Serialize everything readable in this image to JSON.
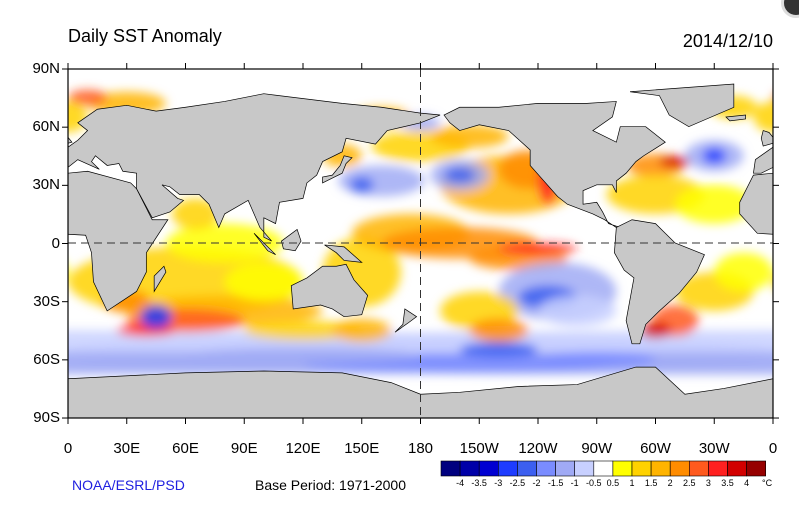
{
  "header": {
    "title": "Daily SST Anomaly",
    "date": "2014/12/10"
  },
  "map": {
    "lat_labels": [
      "90N",
      "60N",
      "30N",
      "0",
      "30S",
      "60S",
      "90S"
    ],
    "lon_labels": [
      "0",
      "30E",
      "60E",
      "90E",
      "120E",
      "150E",
      "180",
      "150W",
      "120W",
      "90W",
      "60W",
      "30W",
      "0"
    ],
    "ocean_color": "#ffffff",
    "land_color": "#c8c8c8"
  },
  "footer": {
    "org": "NOAA/ESRL/PSD",
    "base_period": "Base Period: 1971-2000"
  },
  "colorbar": {
    "colors": [
      "#00007f",
      "#0000a8",
      "#0000d2",
      "#1e3cff",
      "#3c5ff0",
      "#7a8cff",
      "#a0aaf5",
      "#c8d0ff",
      "#ffffff",
      "#ffff00",
      "#ffd200",
      "#ffb400",
      "#ff8c00",
      "#ff5a1e",
      "#ff2020",
      "#d20000",
      "#960000"
    ],
    "labels": [
      "-4",
      "-3.5",
      "-3",
      "-2.5",
      "-2",
      "-1.5",
      "-1",
      "-0.5",
      "0.5",
      "1",
      "1.5",
      "2",
      "2.5",
      "3",
      "3.5",
      "4"
    ],
    "unit": "°C"
  }
}
